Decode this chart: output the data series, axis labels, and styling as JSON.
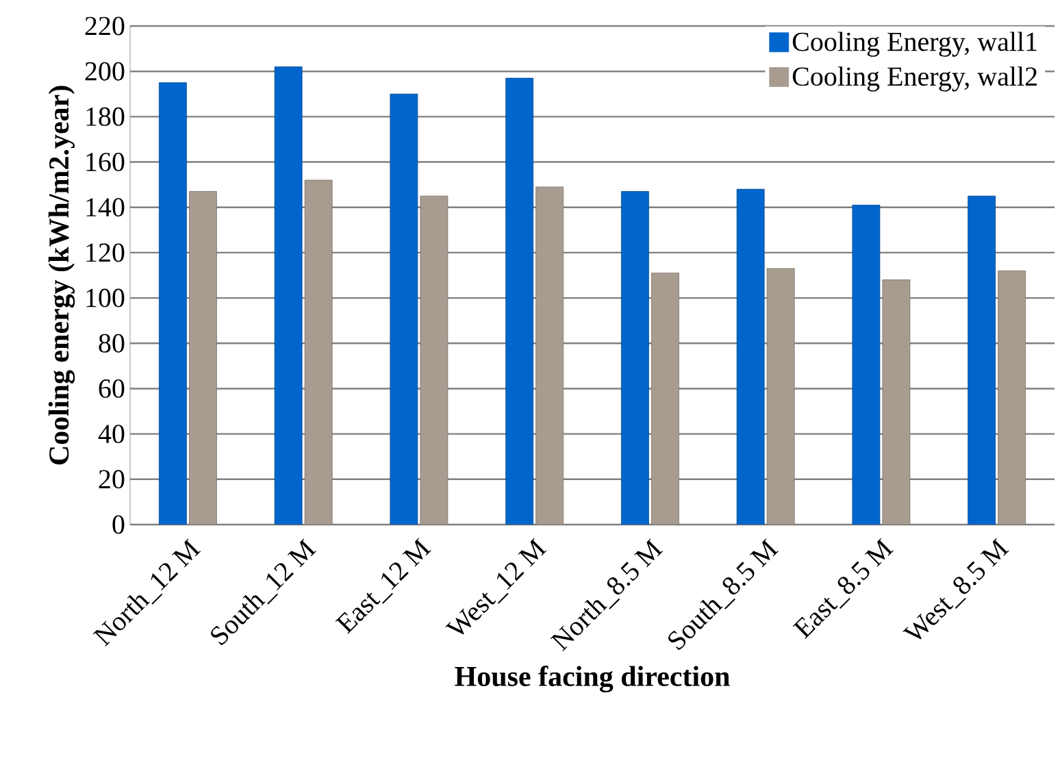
{
  "chart_data": {
    "type": "bar",
    "xlabel": "House facing direction",
    "ylabel": "Cooling energy (kWh/m2.year)",
    "categories": [
      "North_12 M",
      "South_12 M",
      "East_12 M",
      "West_12 M",
      "North_8.5 M",
      "South_8.5 M",
      "East_8.5 M",
      "West_8.5 M"
    ],
    "series": [
      {
        "name": "Cooling Energy, wall1",
        "color": "#0066cc",
        "values": [
          195,
          202,
          190,
          197,
          147,
          148,
          141,
          145
        ]
      },
      {
        "name": "Cooling Energy, wall2",
        "color": "#a89c90",
        "values": [
          147,
          152,
          145,
          149,
          111,
          113,
          108,
          112
        ]
      }
    ],
    "ylim": [
      0,
      220
    ],
    "yticks": [
      0,
      20,
      40,
      60,
      80,
      100,
      120,
      140,
      160,
      180,
      200,
      220
    ],
    "grid": "y",
    "legend": "top right"
  }
}
